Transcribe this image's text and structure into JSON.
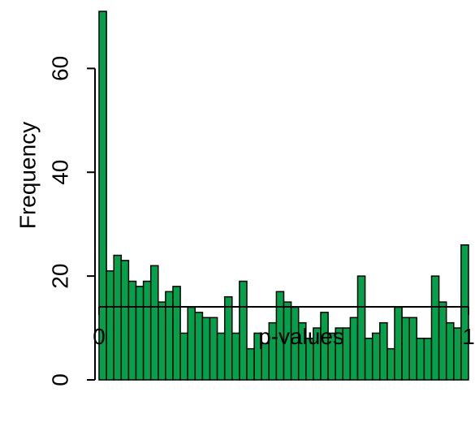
{
  "chart_data": {
    "type": "bar",
    "title": "",
    "xlabel": "p-values",
    "ylabel": "Frequency",
    "xlim": [
      0,
      1
    ],
    "ylim": [
      0,
      71
    ],
    "bin_width": 0.02,
    "bins": [
      0.0,
      0.02,
      0.04,
      0.06,
      0.08,
      0.1,
      0.12,
      0.14,
      0.16,
      0.18,
      0.2,
      0.22,
      0.24,
      0.26,
      0.28,
      0.3,
      0.32,
      0.34,
      0.36,
      0.38,
      0.4,
      0.42,
      0.44,
      0.46,
      0.48,
      0.5,
      0.52,
      0.54,
      0.56,
      0.58,
      0.6,
      0.62,
      0.64,
      0.66,
      0.68,
      0.7,
      0.72,
      0.74,
      0.76,
      0.78,
      0.8,
      0.82,
      0.84,
      0.86,
      0.88,
      0.9,
      0.92,
      0.94,
      0.96,
      0.98
    ],
    "values": [
      71,
      21,
      24,
      23,
      19,
      18,
      19,
      22,
      15,
      17,
      18,
      9,
      14,
      13,
      12,
      12,
      9,
      16,
      9,
      19,
      6,
      9,
      7,
      11,
      17,
      15,
      14,
      11,
      8,
      10,
      13,
      9,
      10,
      10,
      12,
      20,
      8,
      9,
      11,
      6,
      14,
      12,
      12,
      8,
      8,
      20,
      15,
      11,
      10,
      26
    ],
    "x_ticks": [
      {
        "value": 0,
        "label": "0"
      },
      {
        "value": 1,
        "label": "1"
      }
    ],
    "y_ticks": [
      {
        "value": 0,
        "label": "0"
      },
      {
        "value": 20,
        "label": "20"
      },
      {
        "value": 40,
        "label": "40"
      },
      {
        "value": 60,
        "label": "60"
      }
    ],
    "bar_color": "#06a04a",
    "bar_edge_color": "#000000",
    "grid": false,
    "legend": "none"
  }
}
